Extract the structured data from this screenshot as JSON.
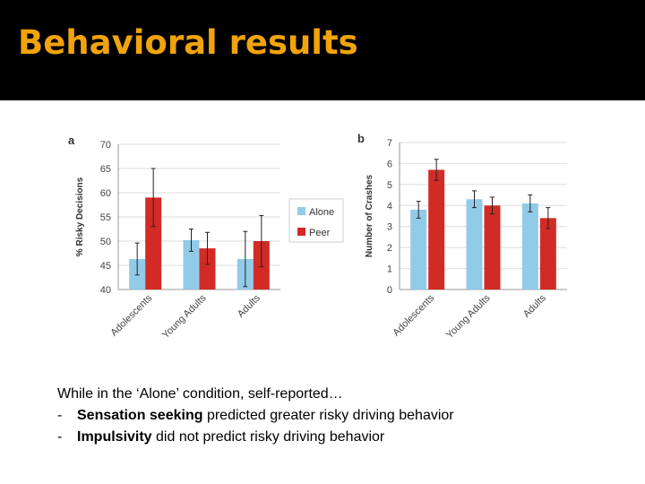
{
  "slide": {
    "title": "Behavioral results",
    "intro": "While in the ‘Alone’ condition, self-reported…",
    "bullets": [
      {
        "dash": "-",
        "bold": "Sensation seeking",
        "rest": " predicted greater risky driving behavior"
      },
      {
        "dash": "-",
        "bold": "Impulsivity",
        "rest": " did not predict risky driving behavior"
      }
    ]
  },
  "colors": {
    "alone": "#92cbe8",
    "peer": "#d22b25",
    "title": "#f0a30a"
  },
  "legend": {
    "alone": "Alone",
    "peer": "Peer"
  },
  "chart_data": [
    {
      "panel": "a",
      "type": "bar",
      "ylabel": "% Risky Decisions",
      "ylim": [
        40,
        70
      ],
      "yticks": [
        40,
        45,
        50,
        55,
        60,
        65,
        70
      ],
      "categories": [
        "Adolescents",
        "Young Adults",
        "Adults"
      ],
      "series": [
        {
          "name": "Alone",
          "values": [
            46.3,
            50.2,
            46.3
          ],
          "errors": [
            3.3,
            2.3,
            5.7
          ]
        },
        {
          "name": "Peer",
          "values": [
            59.0,
            48.5,
            50.0
          ],
          "errors": [
            6.0,
            3.3,
            5.3
          ]
        }
      ]
    },
    {
      "panel": "b",
      "type": "bar",
      "ylabel": "Number of Crashes",
      "ylim": [
        0,
        7
      ],
      "yticks": [
        0,
        1,
        2,
        3,
        4,
        5,
        6,
        7
      ],
      "categories": [
        "Adolescents",
        "Young Adults",
        "Adults"
      ],
      "series": [
        {
          "name": "Alone",
          "values": [
            3.8,
            4.3,
            4.1
          ],
          "errors": [
            0.4,
            0.4,
            0.4
          ]
        },
        {
          "name": "Peer",
          "values": [
            5.7,
            4.0,
            3.4
          ],
          "errors": [
            0.5,
            0.4,
            0.5
          ]
        }
      ]
    }
  ]
}
